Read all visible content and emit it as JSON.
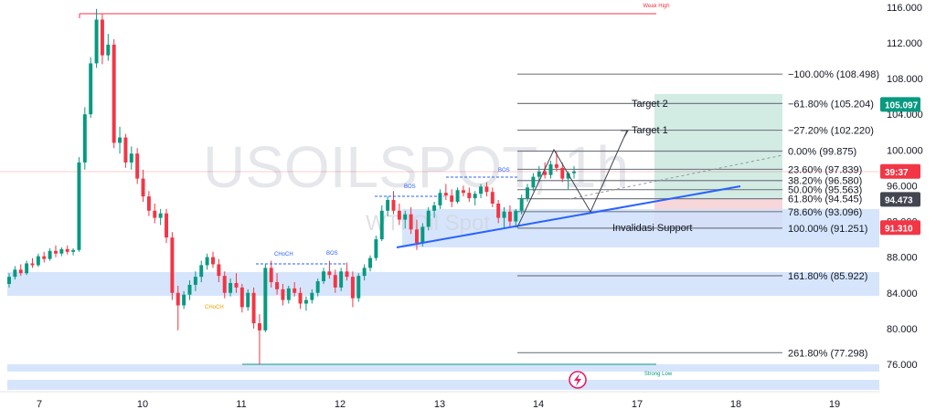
{
  "chart_data": {
    "type": "candlestick",
    "watermark": "USOILSPOT, 1h",
    "watermark_sub": "WTI Oil Spot",
    "x_ticks": [
      "7",
      "10",
      "11",
      "12",
      "13",
      "14",
      "17",
      "18",
      "19"
    ],
    "y_ticks": [
      "76.000",
      "80.000",
      "84.000",
      "88.000",
      "92.000",
      "96.000",
      "100.000",
      "104.000",
      "108.000",
      "112.000",
      "116.000"
    ],
    "ylim": [
      74.6,
      116.2
    ],
    "fib_levels": [
      {
        "label": "−100.00% (108.498)",
        "price": 108.498
      },
      {
        "label": "−61.80% (105.204)",
        "price": 105.204
      },
      {
        "label": "−27.20% (102.220)",
        "price": 102.22
      },
      {
        "label": "0.00% (99.875)",
        "price": 99.875
      },
      {
        "label": "23.60% (97.839)",
        "price": 97.839
      },
      {
        "label": "38.20% (96.580)",
        "price": 96.58
      },
      {
        "label": "50.00% (95.563)",
        "price": 95.563
      },
      {
        "label": "61.80% (94.545)",
        "price": 94.545
      },
      {
        "label": "78.60% (93.096)",
        "price": 93.096
      },
      {
        "label": "100.00% (91.251)",
        "price": 91.251
      },
      {
        "label": "161.80% (85.922)",
        "price": 85.922
      },
      {
        "label": "261.80% (77.298)",
        "price": 77.298
      }
    ],
    "annotations": {
      "target2": "Target 2",
      "target1": "Target 1",
      "invalidasi": "Invalidasi Support",
      "weak_high": "Weak High",
      "strong_low": "Strong Low",
      "choch1": "CHoCH",
      "choch2": "CHoCH",
      "bos1": "BOS",
      "bos2": "BOS",
      "bos3": "BOS"
    },
    "badges": [
      {
        "text": "105.097",
        "price": 105.097,
        "color": "#089981"
      },
      {
        "text": "39:37",
        "price": 97.6,
        "color": "#f23645"
      },
      {
        "text": "94.473",
        "price": 94.473,
        "color": "#434651"
      },
      {
        "text": "91.310",
        "price": 91.31,
        "color": "#f23645"
      }
    ],
    "colors": {
      "up": "#089981",
      "down": "#f23645",
      "trend": "#2962ff",
      "zone": "#cfe0fb"
    },
    "candles": [
      [
        85.0,
        86.2,
        84.6,
        85.8
      ],
      [
        85.8,
        87.0,
        85.5,
        86.6
      ],
      [
        86.6,
        87.2,
        85.9,
        86.2
      ],
      [
        86.2,
        87.6,
        86.0,
        87.3
      ],
      [
        87.3,
        87.9,
        86.8,
        87.1
      ],
      [
        87.1,
        88.4,
        86.9,
        88.1
      ],
      [
        88.1,
        88.6,
        87.4,
        87.8
      ],
      [
        87.8,
        89.0,
        87.6,
        88.7
      ],
      [
        88.7,
        89.3,
        88.0,
        88.4
      ],
      [
        88.4,
        89.1,
        88.1,
        88.9
      ],
      [
        88.9,
        89.3,
        88.3,
        88.6
      ],
      [
        88.6,
        89.0,
        88.2,
        88.8
      ],
      [
        88.8,
        99.2,
        88.6,
        98.6
      ],
      [
        98.6,
        104.8,
        97.8,
        104.0
      ],
      [
        104.0,
        110.4,
        103.6,
        109.7
      ],
      [
        109.7,
        115.8,
        109.2,
        114.6
      ],
      [
        114.6,
        115.2,
        109.6,
        110.6
      ],
      [
        110.6,
        113.0,
        110.0,
        111.8
      ],
      [
        111.8,
        112.4,
        100.2,
        100.8
      ],
      [
        100.8,
        102.6,
        99.6,
        101.4
      ],
      [
        101.4,
        101.8,
        98.0,
        98.6
      ],
      [
        98.6,
        100.4,
        97.8,
        99.6
      ],
      [
        99.6,
        100.2,
        96.2,
        96.8
      ],
      [
        96.8,
        97.8,
        94.2,
        94.8
      ],
      [
        94.8,
        95.4,
        92.6,
        93.2
      ],
      [
        93.2,
        94.0,
        91.8,
        92.4
      ],
      [
        92.4,
        93.4,
        91.6,
        92.9
      ],
      [
        92.9,
        93.4,
        89.6,
        90.2
      ],
      [
        90.2,
        90.8,
        83.2,
        84.0
      ],
      [
        84.0,
        84.8,
        79.8,
        82.6
      ],
      [
        82.6,
        84.2,
        82.2,
        83.8
      ],
      [
        83.8,
        85.4,
        83.2,
        84.9
      ],
      [
        84.9,
        86.4,
        84.2,
        85.8
      ],
      [
        85.8,
        87.6,
        85.2,
        87.1
      ],
      [
        87.1,
        88.4,
        86.6,
        88.0
      ],
      [
        88.0,
        88.6,
        86.8,
        87.2
      ],
      [
        87.2,
        87.8,
        85.2,
        85.9
      ],
      [
        85.9,
        86.4,
        83.4,
        84.0
      ],
      [
        84.0,
        85.6,
        83.6,
        85.1
      ],
      [
        85.1,
        86.2,
        84.0,
        84.6
      ],
      [
        84.6,
        85.0,
        81.8,
        82.4
      ],
      [
        82.4,
        84.4,
        82.0,
        84.0
      ],
      [
        84.0,
        84.6,
        80.0,
        80.6
      ],
      [
        80.6,
        81.6,
        76.0,
        79.8
      ],
      [
        79.8,
        87.2,
        79.6,
        86.8
      ],
      [
        86.8,
        87.6,
        84.6,
        85.2
      ],
      [
        85.2,
        86.2,
        83.8,
        84.4
      ],
      [
        84.4,
        85.0,
        82.6,
        83.2
      ],
      [
        83.2,
        84.8,
        82.8,
        84.5
      ],
      [
        84.5,
        85.2,
        83.6,
        84.0
      ],
      [
        84.0,
        84.6,
        82.2,
        82.8
      ],
      [
        82.8,
        83.6,
        82.0,
        83.2
      ],
      [
        83.2,
        84.4,
        82.8,
        84.0
      ],
      [
        84.0,
        85.6,
        83.6,
        85.3
      ],
      [
        85.3,
        86.8,
        85.0,
        86.4
      ],
      [
        86.4,
        87.6,
        85.6,
        86.0
      ],
      [
        86.0,
        86.6,
        84.0,
        84.6
      ],
      [
        84.6,
        86.8,
        84.2,
        86.4
      ],
      [
        86.4,
        87.4,
        85.4,
        85.8
      ],
      [
        85.8,
        86.4,
        82.4,
        83.4
      ],
      [
        83.4,
        86.2,
        83.0,
        85.9
      ],
      [
        85.9,
        87.2,
        85.4,
        86.8
      ],
      [
        86.8,
        88.2,
        86.4,
        87.9
      ],
      [
        87.9,
        90.4,
        87.6,
        90.0
      ],
      [
        90.0,
        93.8,
        89.8,
        93.2
      ],
      [
        93.2,
        94.8,
        92.6,
        94.4
      ],
      [
        94.4,
        95.4,
        92.8,
        93.2
      ],
      [
        93.2,
        94.0,
        91.6,
        92.2
      ],
      [
        92.2,
        93.2,
        91.2,
        92.8
      ],
      [
        92.8,
        93.6,
        90.6,
        91.1
      ],
      [
        91.1,
        92.2,
        88.8,
        89.6
      ],
      [
        89.6,
        91.8,
        89.2,
        91.4
      ],
      [
        91.4,
        93.6,
        91.0,
        93.2
      ],
      [
        93.2,
        94.2,
        92.4,
        93.8
      ],
      [
        93.8,
        95.6,
        93.4,
        95.2
      ],
      [
        95.2,
        96.2,
        94.4,
        94.9
      ],
      [
        94.9,
        95.6,
        93.6,
        94.2
      ],
      [
        94.2,
        95.8,
        94.0,
        95.5
      ],
      [
        95.5,
        96.0,
        94.8,
        95.2
      ],
      [
        95.2,
        95.8,
        94.2,
        94.6
      ],
      [
        94.6,
        95.4,
        93.8,
        95.1
      ],
      [
        95.1,
        96.2,
        94.6,
        95.9
      ],
      [
        95.9,
        96.4,
        94.8,
        95.3
      ],
      [
        95.3,
        95.8,
        93.6,
        94.0
      ],
      [
        94.0,
        94.4,
        91.8,
        92.4
      ],
      [
        92.4,
        93.6,
        91.2,
        93.1
      ],
      [
        93.1,
        93.8,
        91.4,
        92.0
      ],
      [
        92.0,
        93.4,
        91.3,
        93.2
      ],
      [
        93.2,
        95.0,
        92.8,
        94.6
      ],
      [
        94.6,
        96.2,
        94.2,
        95.8
      ],
      [
        95.8,
        97.4,
        95.4,
        97.0
      ],
      [
        97.0,
        98.2,
        96.4,
        97.6
      ],
      [
        97.6,
        98.6,
        96.8,
        97.2
      ],
      [
        97.2,
        98.8,
        96.8,
        98.4
      ],
      [
        98.4,
        99.8,
        97.6,
        98.0
      ],
      [
        98.0,
        98.6,
        96.4,
        96.8
      ],
      [
        96.8,
        97.6,
        95.6,
        97.4
      ],
      [
        97.4,
        98.2,
        96.8,
        97.6
      ]
    ]
  }
}
